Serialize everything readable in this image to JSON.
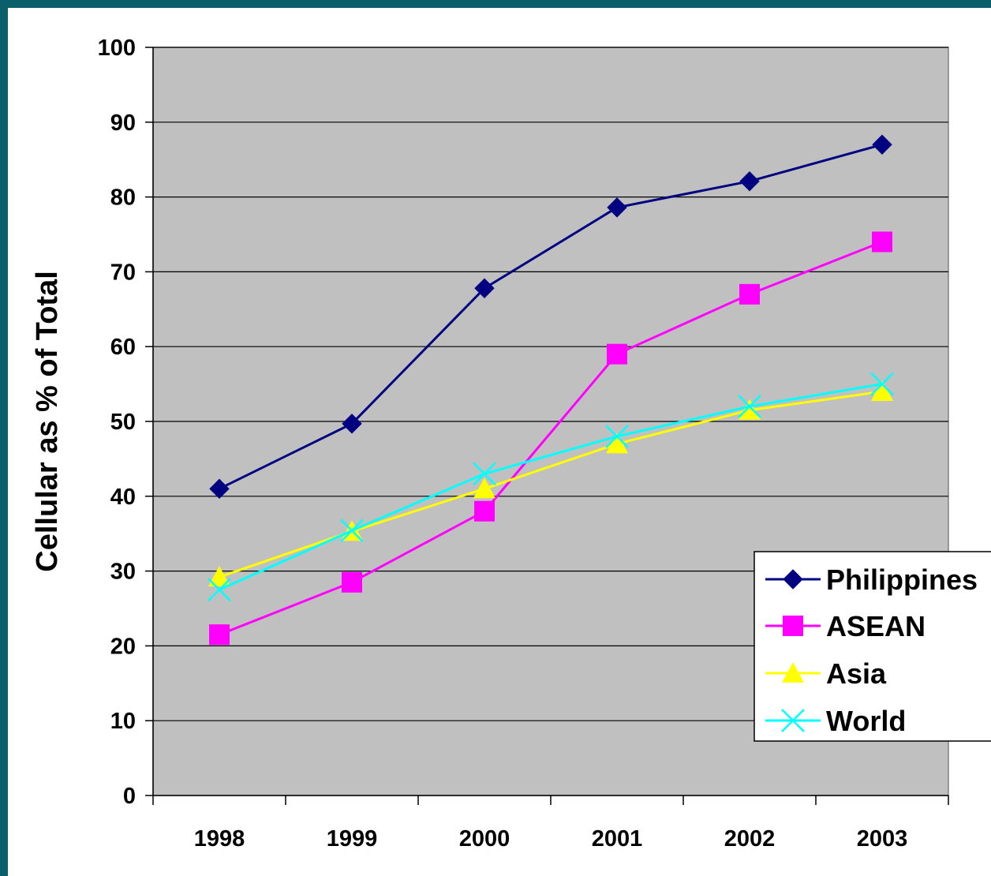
{
  "chart_data": {
    "type": "line",
    "title": "",
    "xlabel": "",
    "ylabel": "Cellular as % of Total",
    "ylim": [
      0,
      100
    ],
    "yticks": [
      "0",
      "10",
      "20",
      "30",
      "40",
      "50",
      "60",
      "70",
      "80",
      "90",
      "100"
    ],
    "categories": [
      "1998",
      "1999",
      "2000",
      "2001",
      "2002",
      "2003"
    ],
    "grid": "horizontal",
    "legend_position": "right",
    "plot_background": "#c0c0c0",
    "series": [
      {
        "name": "Philippines",
        "values": [
          41,
          49.7,
          67.8,
          78.6,
          82.1,
          87
        ],
        "color": "#000080",
        "marker": "diamond"
      },
      {
        "name": "ASEAN",
        "values": [
          21.5,
          28.5,
          38,
          59,
          67,
          74
        ],
        "color": "#ff00ff",
        "marker": "square"
      },
      {
        "name": "Asia",
        "values": [
          29.2,
          35.3,
          41,
          47,
          51.5,
          54
        ],
        "color": "#ffff00",
        "marker": "triangle"
      },
      {
        "name": "World",
        "values": [
          27.5,
          35.4,
          43,
          48,
          52,
          55
        ],
        "color": "#00ffff",
        "marker": "x"
      }
    ]
  }
}
